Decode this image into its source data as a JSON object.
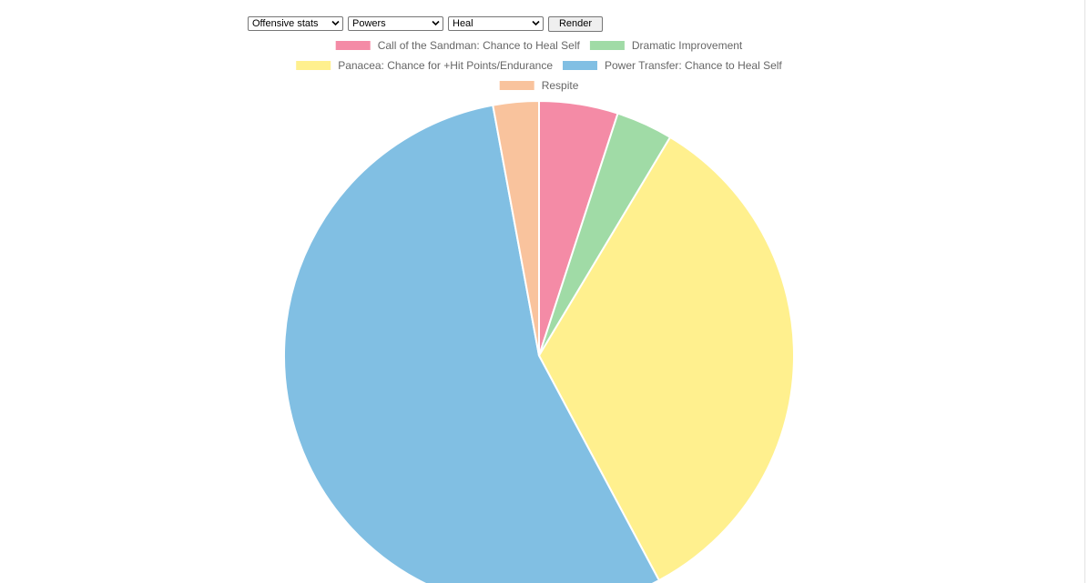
{
  "controls": {
    "stat_group": "Offensive stats",
    "category": "Powers",
    "stat": "Heal",
    "render_label": "Render"
  },
  "chart_data": {
    "type": "pie",
    "title": "",
    "legend_position": "top",
    "legend_rows": [
      [
        0,
        1
      ],
      [
        2,
        3
      ],
      [
        4
      ]
    ],
    "slices": [
      {
        "label": "Call of the Sandman: Chance to Heal Self",
        "value": 5.0,
        "color": "#f48ba6"
      },
      {
        "label": "Dramatic Improvement",
        "value": 3.6,
        "color": "#a0dba6"
      },
      {
        "label": "Panacea: Chance for +Hit Points/Endurance",
        "value": 33.6,
        "color": "#fff08e"
      },
      {
        "label": "Power Transfer: Chance to Heal Self",
        "value": 54.9,
        "color": "#81bfe3"
      },
      {
        "label": "Respite",
        "value": 2.9,
        "color": "#f9c39d"
      }
    ]
  }
}
